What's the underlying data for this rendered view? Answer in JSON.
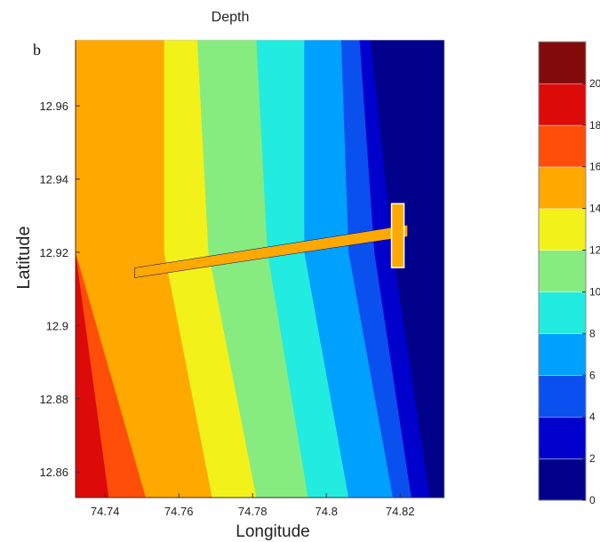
{
  "chart_data": {
    "type": "heatmap",
    "panel_label": "b",
    "title": "Depth",
    "xlabel": "Longitude",
    "ylabel": "Latitude",
    "xlim": [
      74.732,
      74.832
    ],
    "ylim": [
      12.853,
      12.978
    ],
    "x_ticks": [
      "74.74",
      "74.76",
      "74.78",
      "74.8",
      "74.82"
    ],
    "y_ticks": [
      "12.96",
      "12.94",
      "12.92",
      "12.9",
      "12.88",
      "12.86"
    ],
    "colorbar": {
      "ticks": [
        "0",
        "2",
        "4",
        "6",
        "8",
        "10",
        "12",
        "14",
        "16",
        "18",
        "20"
      ],
      "range": [
        0,
        22
      ],
      "levels": [
        {
          "from": 0,
          "to": 2,
          "color": "#00008b"
        },
        {
          "from": 2,
          "to": 4,
          "color": "#0000cd"
        },
        {
          "from": 4,
          "to": 6,
          "color": "#0a50ee"
        },
        {
          "from": 6,
          "to": 8,
          "color": "#00a0ff"
        },
        {
          "from": 8,
          "to": 10,
          "color": "#22ecdf"
        },
        {
          "from": 10,
          "to": 12,
          "color": "#86ec80"
        },
        {
          "from": 12,
          "to": 14,
          "color": "#f2f21a"
        },
        {
          "from": 14,
          "to": 16,
          "color": "#ffa800"
        },
        {
          "from": 16,
          "to": 18,
          "color": "#ff4d0a"
        },
        {
          "from": 18,
          "to": 20,
          "color": "#dd0a0a"
        },
        {
          "from": 20,
          "to": 22,
          "color": "#820a0a"
        }
      ]
    },
    "depth_contours": [
      {
        "depth": 2,
        "longitude": [
          74.812,
          74.818,
          74.828
        ]
      },
      {
        "depth": 4,
        "longitude": [
          74.809,
          74.813,
          74.823
        ]
      },
      {
        "depth": 6,
        "longitude": [
          74.804,
          74.806,
          74.818
        ]
      },
      {
        "depth": 8,
        "longitude": [
          74.794,
          74.794,
          74.806
        ]
      },
      {
        "depth": 10,
        "longitude": [
          74.781,
          74.784,
          74.795
        ]
      },
      {
        "depth": 12,
        "longitude": [
          74.765,
          74.768,
          74.781
        ]
      },
      {
        "depth": 14,
        "longitude": [
          74.756,
          74.756,
          74.769
        ]
      },
      {
        "depth": 16,
        "longitude": [
          74.732,
          74.732,
          74.751
        ]
      },
      {
        "depth": 18,
        "longitude": [
          74.732,
          74.732,
          74.741
        ]
      }
    ],
    "contour_latitudes": [
      12.978,
      12.92,
      12.853
    ],
    "jetty": {
      "depth_class": 16,
      "longitude": [
        74.748,
        74.822
      ],
      "latitude": [
        12.915,
        12.926
      ]
    },
    "grid": false
  }
}
